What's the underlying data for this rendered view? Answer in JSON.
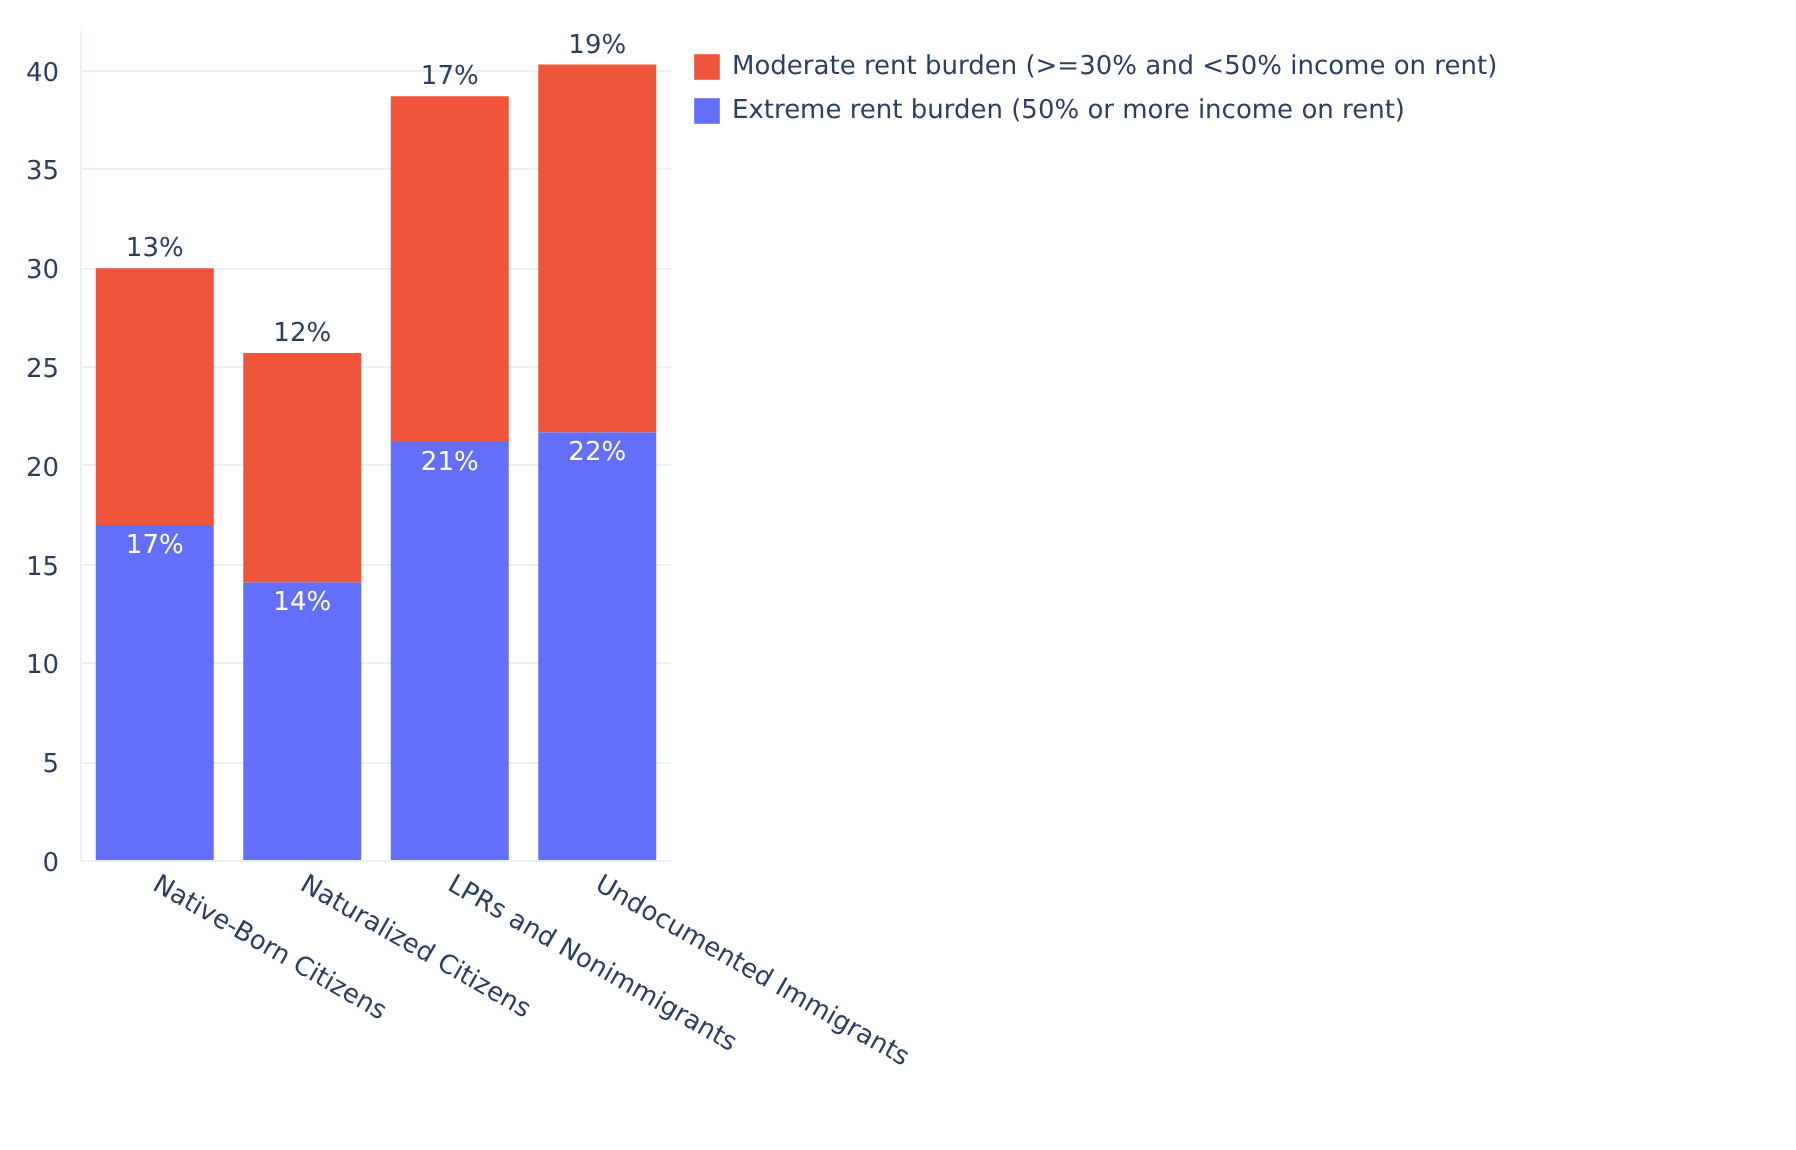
{
  "chart_data": {
    "type": "bar",
    "stacked": true,
    "categories": [
      "Native-Born Citizens",
      "Naturalized Citizens",
      "LPRs and Nonimmigrants",
      "Undocumented Immigrants"
    ],
    "series": [
      {
        "name": "Extreme rent burden (50% or more income on rent)",
        "color": "#636efa",
        "values": [
          17,
          14.1,
          21.2,
          21.7
        ],
        "value_labels": [
          "17%",
          "14%",
          "21%",
          "22%"
        ]
      },
      {
        "name": "Moderate rent burden (>=30% and <50% income on rent)",
        "color": "#ef553b",
        "values": [
          13,
          11.6,
          17.5,
          18.6
        ],
        "value_labels": [
          "13%",
          "12%",
          "17%",
          "19%"
        ]
      }
    ],
    "ylim": [
      0,
      42
    ],
    "yticks": [
      0,
      5,
      10,
      15,
      20,
      25,
      30,
      35,
      40
    ],
    "grid": "y",
    "legend": "top right"
  }
}
